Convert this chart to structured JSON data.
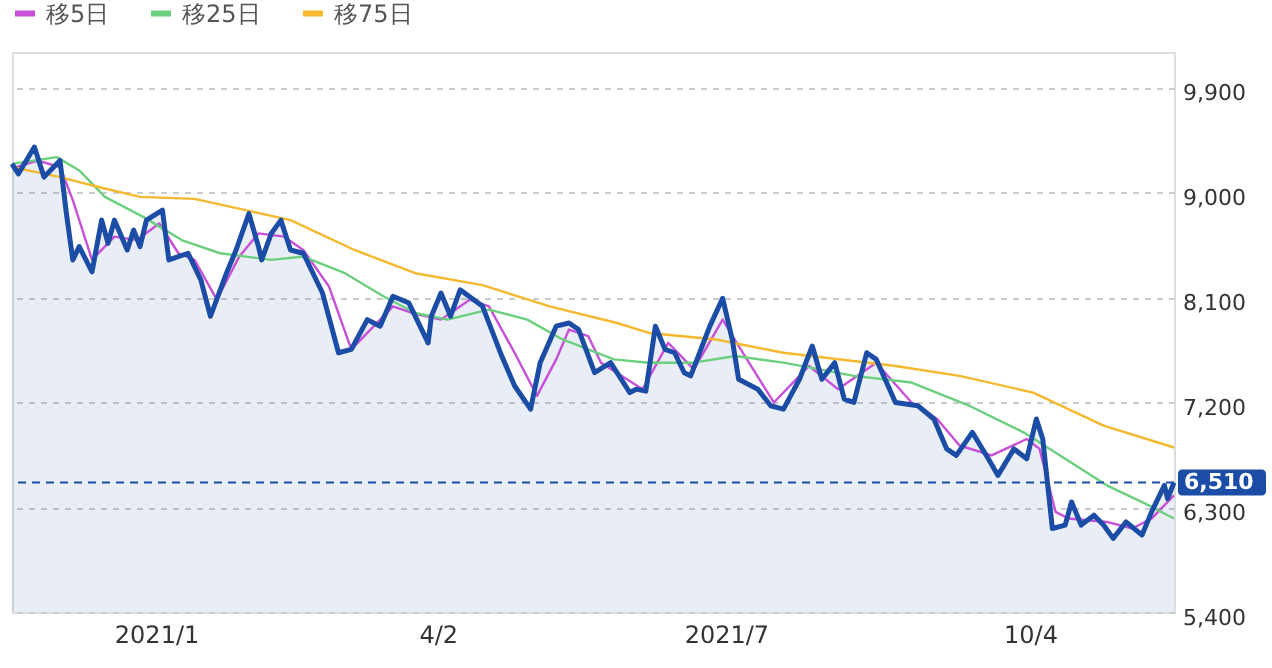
{
  "chart_data": {
    "type": "line",
    "xlim": [
      "2020-11-20",
      "2021-11-18"
    ],
    "ylim": [
      5400,
      10200
    ],
    "xticks": [
      {
        "value": "2021-01-04",
        "label": "2021/1"
      },
      {
        "value": "2021-04-02",
        "label": "4/2"
      },
      {
        "value": "2021-07-01",
        "label": "2021/7"
      },
      {
        "value": "2021-10-04",
        "label": "10/4"
      }
    ],
    "yticks": [
      {
        "value": 5400,
        "label": "5,400"
      },
      {
        "value": 6300,
        "label": "6,300"
      },
      {
        "value": 7200,
        "label": "7,200"
      },
      {
        "value": 8100,
        "label": "8,100"
      },
      {
        "value": 9000,
        "label": "9,000"
      },
      {
        "value": 9900,
        "label": "9,900"
      }
    ],
    "grid": "y",
    "legend": "top left",
    "marker": "none",
    "line_style": "solid",
    "ref_lines": [
      {
        "axis": "y",
        "value": 6510,
        "label": "6,510",
        "color": "#1b4da6",
        "line_style": "dashed"
      }
    ],
    "series": [
      {
        "type": "area",
        "color": "#1b4da6",
        "x": [
          "2020-11-20",
          "2020-11-22",
          "2020-11-27",
          "2020-11-30",
          "2020-12-05",
          "2020-12-07",
          "2020-12-09",
          "2020-12-11",
          "2020-12-15",
          "2020-12-18",
          "2020-12-20",
          "2020-12-22",
          "2020-12-26",
          "2020-12-28",
          "2020-12-30",
          "2021-01-01",
          "2021-01-06",
          "2021-01-08",
          "2021-01-14",
          "2021-01-18",
          "2021-01-21",
          "2021-01-26",
          "2021-01-29",
          "2021-02-02",
          "2021-02-05",
          "2021-02-06",
          "2021-02-09",
          "2021-02-12",
          "2021-02-15",
          "2021-02-19",
          "2021-02-25",
          "2021-03-02",
          "2021-03-06",
          "2021-03-11",
          "2021-03-15",
          "2021-03-19",
          "2021-03-24",
          "2021-03-30",
          "2021-03-31",
          "2021-04-03",
          "2021-04-06",
          "2021-04-09",
          "2021-04-16",
          "2021-04-22",
          "2021-04-26",
          "2021-05-01",
          "2021-05-04",
          "2021-05-09",
          "2021-05-13",
          "2021-05-16",
          "2021-05-21",
          "2021-05-26",
          "2021-06-01",
          "2021-06-03",
          "2021-06-06",
          "2021-06-09",
          "2021-06-12",
          "2021-06-15",
          "2021-06-18",
          "2021-06-20",
          "2021-06-22",
          "2021-06-26",
          "2021-06-30",
          "2021-07-03",
          "2021-07-05",
          "2021-07-11",
          "2021-07-15",
          "2021-07-19",
          "2021-07-24",
          "2021-07-28",
          "2021-07-31",
          "2021-08-04",
          "2021-08-07",
          "2021-08-10",
          "2021-08-14",
          "2021-08-17",
          "2021-08-23",
          "2021-08-30",
          "2021-09-04",
          "2021-09-08",
          "2021-09-11",
          "2021-09-16",
          "2021-09-21",
          "2021-09-24",
          "2021-09-29",
          "2021-10-03",
          "2021-10-06",
          "2021-10-08",
          "2021-10-11",
          "2021-10-15",
          "2021-10-17",
          "2021-10-20",
          "2021-10-24",
          "2021-10-27",
          "2021-10-30",
          "2021-11-03",
          "2021-11-08",
          "2021-11-11",
          "2021-11-15",
          "2021-11-16",
          "2021-11-18"
        ],
        "values": [
          9241,
          9156,
          9385,
          9128,
          9270,
          8815,
          8418,
          8532,
          8316,
          8759,
          8559,
          8759,
          8503,
          8674,
          8532,
          8759,
          8844,
          8418,
          8475,
          8247,
          7935,
          8304,
          8503,
          8815,
          8532,
          8418,
          8645,
          8759,
          8503,
          8475,
          8134,
          7622,
          7651,
          7906,
          7850,
          8106,
          8048,
          7707,
          7935,
          8134,
          7935,
          8162,
          8020,
          7594,
          7339,
          7139,
          7537,
          7850,
          7877,
          7821,
          7451,
          7537,
          7281,
          7310,
          7293,
          7850,
          7651,
          7622,
          7451,
          7424,
          7565,
          7850,
          8089,
          7736,
          7395,
          7310,
          7168,
          7139,
          7395,
          7680,
          7395,
          7537,
          7224,
          7196,
          7622,
          7565,
          7196,
          7168,
          7054,
          6798,
          6742,
          6940,
          6713,
          6571,
          6798,
          6713,
          7054,
          6883,
          6116,
          6145,
          6343,
          6145,
          6230,
          6145,
          6031,
          6172,
          6060,
          6258,
          6486,
          6372,
          6510
        ]
      },
      {
        "name": "移5日",
        "color": "#c84fd8",
        "x": [
          "2020-11-20",
          "2020-11-28",
          "2020-12-05",
          "2020-12-09",
          "2020-12-15",
          "2020-12-22",
          "2020-12-29",
          "2021-01-05",
          "2021-01-11",
          "2021-01-16",
          "2021-01-23",
          "2021-01-30",
          "2021-02-05",
          "2021-02-13",
          "2021-02-19",
          "2021-02-27",
          "2021-03-06",
          "2021-03-11",
          "2021-03-19",
          "2021-03-25",
          "2021-04-03",
          "2021-04-12",
          "2021-04-18",
          "2021-04-26",
          "2021-05-03",
          "2021-05-09",
          "2021-05-13",
          "2021-05-19",
          "2021-05-23",
          "2021-06-05",
          "2021-06-13",
          "2021-06-21",
          "2021-06-30",
          "2021-07-05",
          "2021-07-16",
          "2021-07-27",
          "2021-08-05",
          "2021-08-17",
          "2021-08-28",
          "2021-09-05",
          "2021-09-12",
          "2021-09-22",
          "2021-10-03",
          "2021-10-07",
          "2021-10-12",
          "2021-10-16",
          "2021-10-28",
          "2021-11-05",
          "2021-11-11",
          "2021-11-18"
        ],
        "values": [
          9202,
          9270,
          9214,
          8930,
          8418,
          8617,
          8588,
          8730,
          8475,
          8418,
          8077,
          8447,
          8645,
          8617,
          8503,
          8191,
          7651,
          7792,
          8020,
          7963,
          7906,
          8077,
          8020,
          7622,
          7253,
          7565,
          7821,
          7765,
          7537,
          7310,
          7707,
          7480,
          7906,
          7680,
          7196,
          7509,
          7310,
          7537,
          7196,
          7054,
          6827,
          6742,
          6883,
          6798,
          6258,
          6201,
          6172,
          6116,
          6201,
          6400
        ]
      },
      {
        "name": "移25日",
        "color": "#6ccf7e",
        "x": [
          "2020-11-20",
          "2020-12-04",
          "2020-12-11",
          "2020-12-19",
          "2020-12-31",
          "2021-01-12",
          "2021-01-24",
          "2021-02-09",
          "2021-02-19",
          "2021-03-04",
          "2021-03-16",
          "2021-03-26",
          "2021-04-05",
          "2021-04-18",
          "2021-04-30",
          "2021-05-11",
          "2021-05-27",
          "2021-06-07",
          "2021-06-21",
          "2021-07-04",
          "2021-07-19",
          "2021-08-10",
          "2021-08-28",
          "2021-09-15",
          "2021-10-02",
          "2021-10-15",
          "2021-10-28",
          "2021-11-10",
          "2021-11-18"
        ],
        "values": [
          9241,
          9299,
          9185,
          8958,
          8787,
          8588,
          8475,
          8418,
          8447,
          8304,
          8106,
          7963,
          7906,
          7992,
          7906,
          7736,
          7565,
          7537,
          7537,
          7594,
          7537,
          7424,
          7367,
          7168,
          6940,
          6713,
          6486,
          6316,
          6201
        ]
      },
      {
        "name": "移75日",
        "color": "#f5b82e",
        "x": [
          "2020-11-20",
          "2020-12-05",
          "2020-12-17",
          "2020-12-30",
          "2021-01-16",
          "2021-02-01",
          "2021-02-15",
          "2021-03-07",
          "2021-03-26",
          "2021-04-16",
          "2021-05-07",
          "2021-05-28",
          "2021-06-07",
          "2021-06-28",
          "2021-07-19",
          "2021-08-23",
          "2021-09-12",
          "2021-10-05",
          "2021-10-27",
          "2021-11-18"
        ],
        "values": [
          9214,
          9128,
          9043,
          8958,
          8941,
          8844,
          8759,
          8503,
          8304,
          8202,
          8020,
          7877,
          7792,
          7736,
          7622,
          7509,
          7424,
          7281,
          6997,
          6810
        ]
      }
    ]
  }
}
